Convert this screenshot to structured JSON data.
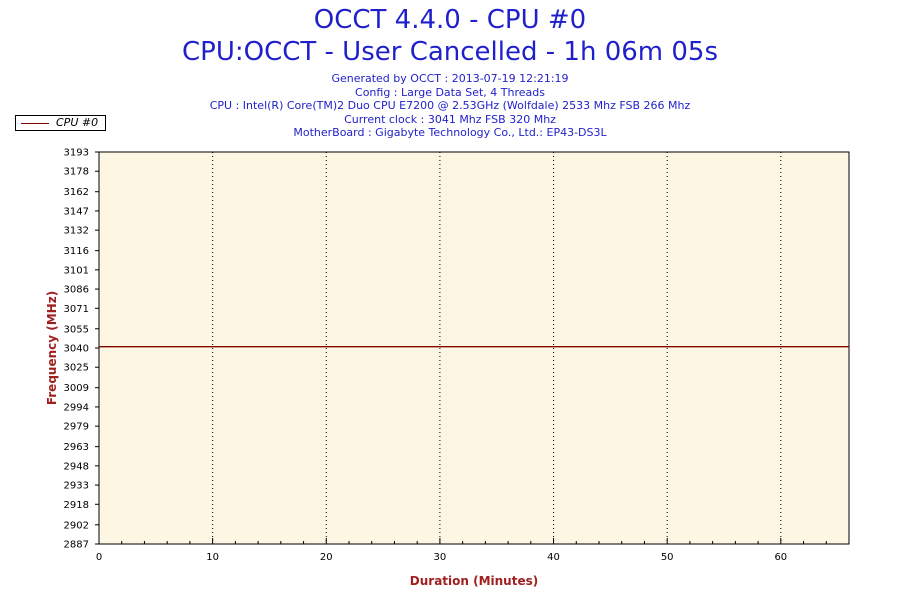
{
  "chart_data": {
    "type": "line",
    "title": "OCCT 4.4.0 - CPU #0",
    "subtitle": "CPU:OCCT - User Cancelled - 1h 06m 05s",
    "info_lines": [
      "Generated by OCCT : 2013-07-19 12:21:19",
      "Config : Large Data Set, 4 Threads",
      "CPU : Intel(R) Core(TM)2 Duo CPU E7200 @ 2.53GHz (Wolfdale) 2533 Mhz FSB 266 Mhz",
      "Current clock : 3041 Mhz FSB 320 Mhz",
      "MotherBoard : Gigabyte Technology Co., Ltd.: EP43-DS3L"
    ],
    "xlabel": "Duration (Minutes)",
    "ylabel": "Frequency (MHz)",
    "xlim": [
      0,
      66
    ],
    "ylim": [
      2887,
      3193
    ],
    "xticks": [
      0,
      10,
      20,
      30,
      40,
      50,
      60
    ],
    "yticks": [
      3193,
      3178,
      3162,
      3147,
      3132,
      3116,
      3101,
      3086,
      3071,
      3055,
      3040,
      3025,
      3009,
      2994,
      2979,
      2963,
      2948,
      2933,
      2918,
      2902,
      2887
    ],
    "grid": "vertical-dotted",
    "legend_position": "top-left",
    "colors": {
      "plot_bg": "#fdf6e3",
      "series": "#800000",
      "title": "#1f1fcc",
      "axis_label": "#a02020"
    },
    "series": [
      {
        "name": "CPU #0",
        "x": [
          0,
          10,
          20,
          30,
          40,
          50,
          60,
          66
        ],
        "values": [
          3041,
          3041,
          3041,
          3041,
          3041,
          3041,
          3041,
          3041
        ]
      }
    ]
  }
}
